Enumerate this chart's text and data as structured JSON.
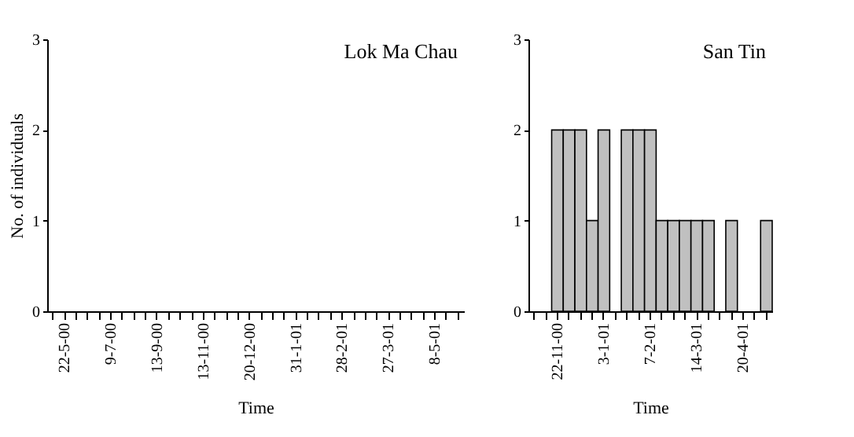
{
  "chart_data": [
    {
      "type": "bar",
      "title": "Lok Ma Chau",
      "xlabel": "Time",
      "ylabel": "No. of individuals",
      "categories": [
        null,
        "22-5-00",
        null,
        null,
        null,
        "9-7-00",
        null,
        null,
        null,
        "13-9-00",
        null,
        null,
        null,
        "13-11-00",
        null,
        null,
        null,
        "20-12-00",
        null,
        null,
        null,
        "31-1-01",
        null,
        null,
        null,
        "28-2-01",
        null,
        null,
        null,
        "27-3-01",
        null,
        null,
        null,
        "8-5-01",
        null,
        null
      ],
      "values": [
        0,
        0,
        0,
        0,
        0,
        0,
        0,
        0,
        0,
        0,
        0,
        0,
        0,
        0,
        0,
        0,
        0,
        0,
        0,
        0,
        0,
        0,
        0,
        0,
        0,
        0,
        0,
        0,
        0,
        0,
        0,
        0,
        0,
        0,
        0,
        0
      ],
      "color": "#c0c0c0",
      "ylim": [
        0,
        3
      ],
      "yticks": [
        0,
        1,
        2,
        3
      ],
      "grid": false
    },
    {
      "type": "bar",
      "title": "San Tin",
      "xlabel": "Time",
      "categories": [
        null,
        null,
        "22-11-00",
        null,
        null,
        null,
        "3-1-01",
        null,
        null,
        null,
        "7-2-01",
        null,
        null,
        null,
        "14-3-01",
        null,
        null,
        null,
        "20-4-01",
        null,
        null
      ],
      "values": [
        0,
        0,
        2,
        2,
        2,
        1,
        2,
        0,
        2,
        2,
        2,
        1,
        1,
        1,
        1,
        1,
        0,
        1,
        0,
        0,
        1
      ],
      "color": "#c0c0c0",
      "ylim": [
        0,
        3
      ],
      "yticks": [
        0,
        1,
        2,
        3
      ],
      "grid": false
    }
  ]
}
